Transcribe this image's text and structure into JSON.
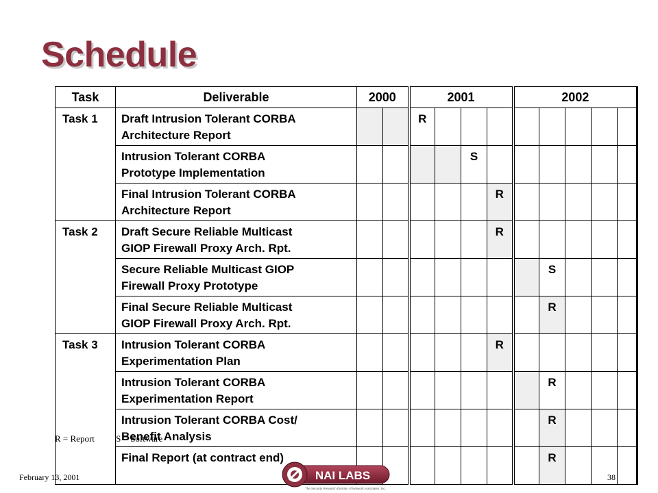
{
  "slide": {
    "title": "Schedule",
    "footer_date": "February 13, 2001",
    "page_number": "38",
    "logo_text": "NAI LABS",
    "logo_tagline": "The Security Research Division of Network Associates, Inc."
  },
  "table": {
    "headers": {
      "task": "Task",
      "deliverable": "Deliverable",
      "years": [
        "2000",
        "2001",
        "2002"
      ]
    },
    "rows": [
      {
        "task": "Task 1",
        "line1": "Draft Intrusion Tolerant CORBA",
        "line2": "Architecture Report",
        "marks": [
          "",
          "",
          "R",
          "",
          "",
          "",
          "",
          "",
          "",
          "",
          ""
        ]
      },
      {
        "task": "",
        "line1": "Intrusion Tolerant CORBA",
        "line2": "Prototype Implementation",
        "marks": [
          "",
          "",
          "",
          "",
          "S",
          "",
          "",
          "",
          "",
          "",
          ""
        ]
      },
      {
        "task": "",
        "line1": "Final Intrusion Tolerant CORBA",
        "line2": "Architecture Report",
        "marks": [
          "",
          "",
          "",
          "",
          "",
          "R",
          "",
          "",
          "",
          "",
          ""
        ]
      },
      {
        "task": "Task 2",
        "line1": "Draft Secure Reliable Multicast",
        "line2": "GIOP Firewall Proxy Arch. Rpt.",
        "marks": [
          "",
          "",
          "",
          "",
          "",
          "R",
          "",
          "",
          "",
          "",
          ""
        ]
      },
      {
        "task": "",
        "line1": "Secure Reliable Multicast GIOP",
        "line2": "Firewall Proxy Prototype",
        "marks": [
          "",
          "",
          "",
          "",
          "",
          "",
          "",
          "S",
          "",
          "",
          ""
        ]
      },
      {
        "task": "",
        "line1": "Final Secure Reliable Multicast",
        "line2": "GIOP Firewall Proxy Arch. Rpt.",
        "marks": [
          "",
          "",
          "",
          "",
          "",
          "",
          "",
          "R",
          "",
          "",
          ""
        ]
      },
      {
        "task": "Task 3",
        "line1": "Intrusion Tolerant CORBA",
        "line2": "Experimentation Plan",
        "marks": [
          "",
          "",
          "",
          "",
          "",
          "R",
          "",
          "",
          "",
          "",
          ""
        ]
      },
      {
        "task": "",
        "line1": "Intrusion Tolerant CORBA",
        "line2": "Experimentation Report",
        "marks": [
          "",
          "",
          "",
          "",
          "",
          "",
          "",
          "R",
          "",
          "",
          ""
        ]
      },
      {
        "task": "",
        "line1": "Intrusion Tolerant CORBA Cost/",
        "line2": "Benefit Analysis",
        "marks": [
          "",
          "",
          "",
          "",
          "",
          "",
          "",
          "R",
          "",
          "",
          ""
        ]
      },
      {
        "task": "",
        "line1": "Final Report (at contract end)",
        "line2": "",
        "marks": [
          "",
          "",
          "",
          "",
          "",
          "",
          "",
          "R",
          "",
          "",
          ""
        ]
      }
    ]
  },
  "legend": {
    "report": "R = Report",
    "software": "S = Software"
  }
}
